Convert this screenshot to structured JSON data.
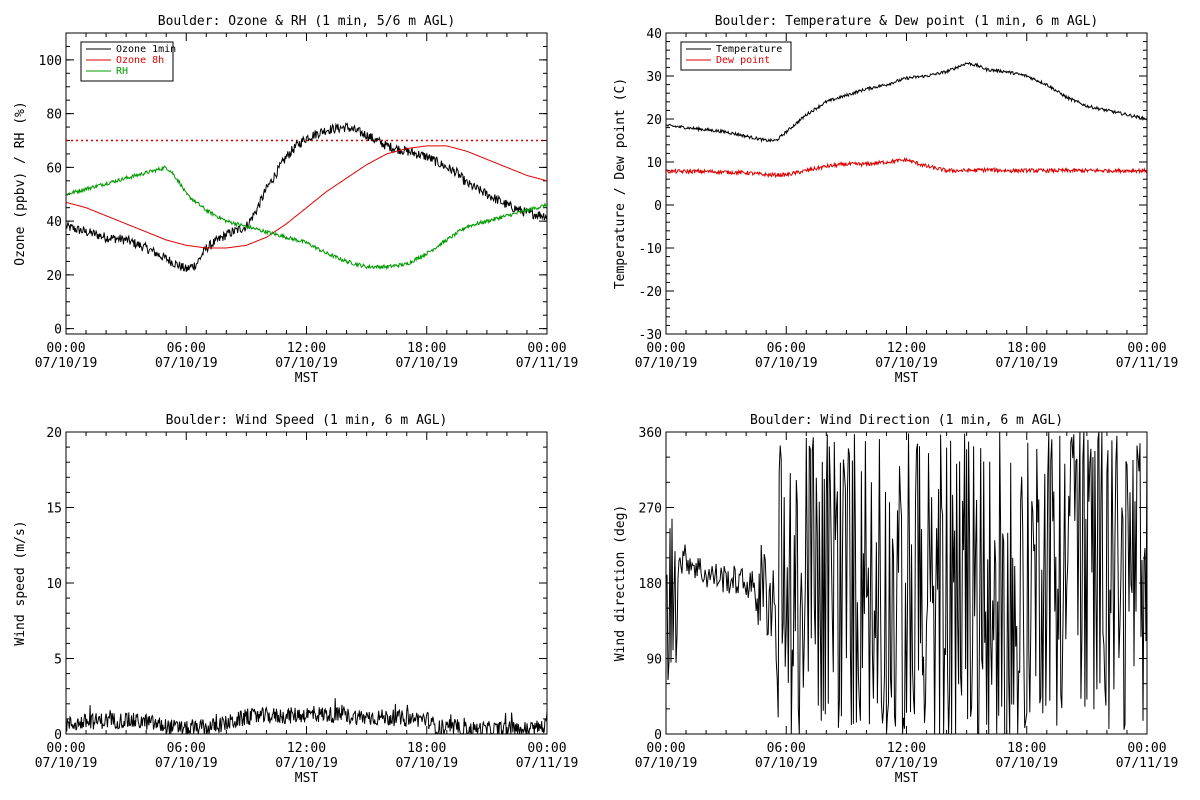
{
  "colors": {
    "ozone_1min": "#000000",
    "ozone_8h": "#dd0000",
    "rh": "#009900",
    "temperature": "#000000",
    "dew_point": "#dd0000",
    "wind_speed": "#000000",
    "wind_direction": "#000000",
    "threshold": "#dd0000"
  },
  "chart_data": [
    {
      "type": "line",
      "title": "Boulder: Ozone & RH (1 min, 5/6 m AGL)",
      "xlabel": "MST",
      "ylabel": "Ozone (ppbv) / RH (%)",
      "xlim": [
        "00:00 07/10/19",
        "00:00 07/11/19"
      ],
      "ylim": [
        -2,
        110
      ],
      "yticks": [
        "0",
        "20",
        "40",
        "60",
        "80",
        "100"
      ],
      "xticks": [
        {
          "time": "00:00",
          "date": "07/10/19"
        },
        {
          "time": "06:00",
          "date": "07/10/19"
        },
        {
          "time": "12:00",
          "date": "07/10/19"
        },
        {
          "time": "18:00",
          "date": "07/10/19"
        },
        {
          "time": "00:00",
          "date": "07/11/19"
        }
      ],
      "legend_position": "top-left",
      "reference_line": {
        "y": 70,
        "style": "dotted"
      },
      "series": [
        {
          "name": "Ozone 1min",
          "x_hours": [
            0,
            1,
            2,
            3,
            4,
            5,
            5.5,
            6,
            6.5,
            7,
            8,
            9,
            9.5,
            10,
            10.5,
            11,
            11.5,
            12,
            13,
            14,
            15,
            16,
            17,
            18,
            18.5,
            19,
            19.5,
            20,
            21,
            22,
            23,
            24
          ],
          "values": [
            38,
            36,
            34,
            33,
            30,
            26,
            24,
            22,
            24,
            30,
            35,
            38,
            44,
            52,
            58,
            64,
            68,
            71,
            74,
            75,
            72,
            68,
            66,
            64,
            62,
            60,
            58,
            54,
            50,
            46,
            43,
            42
          ],
          "noise": 1.8
        },
        {
          "name": "Ozone 8h",
          "x_hours": [
            0,
            1,
            2,
            3,
            4,
            5,
            6,
            7,
            8,
            9,
            10,
            11,
            12,
            13,
            14,
            15,
            16,
            17,
            18,
            19,
            20,
            21,
            22,
            23,
            24
          ],
          "values": [
            47,
            45,
            42,
            39,
            36,
            33,
            31,
            30,
            30,
            31,
            34,
            39,
            45,
            51,
            56,
            61,
            65,
            67,
            68,
            68,
            66,
            63,
            60,
            57,
            55
          ],
          "noise": 0
        },
        {
          "name": "RH",
          "x_hours": [
            0,
            1,
            2,
            3,
            4,
            4.5,
            5,
            5.3,
            5.7,
            6,
            7,
            8,
            9,
            10,
            11,
            12,
            13,
            14,
            15,
            16,
            17,
            18,
            19,
            20,
            21,
            22,
            23,
            24
          ],
          "values": [
            50,
            52,
            54,
            56,
            58,
            59,
            60,
            58,
            54,
            50,
            44,
            40,
            38,
            36,
            34,
            32,
            28,
            25,
            23,
            23,
            24,
            28,
            33,
            38,
            40,
            42,
            44,
            46
          ],
          "noise": 0.7
        }
      ]
    },
    {
      "type": "line",
      "title": "Boulder: Temperature & Dew point (1 min, 6 m AGL)",
      "xlabel": "MST",
      "ylabel": "Temperature / Dew point (C)",
      "xlim": [
        "00:00 07/10/19",
        "00:00 07/11/19"
      ],
      "ylim": [
        -30,
        40
      ],
      "yticks": [
        "-30",
        "-20",
        "-10",
        "0",
        "10",
        "20",
        "30",
        "40"
      ],
      "xticks": [
        {
          "time": "00:00",
          "date": "07/10/19"
        },
        {
          "time": "06:00",
          "date": "07/10/19"
        },
        {
          "time": "12:00",
          "date": "07/10/19"
        },
        {
          "time": "18:00",
          "date": "07/10/19"
        },
        {
          "time": "00:00",
          "date": "07/11/19"
        }
      ],
      "legend_position": "top-left",
      "series": [
        {
          "name": "Temperature",
          "x_hours": [
            0,
            1,
            2,
            3,
            4,
            5,
            5.5,
            6,
            7,
            8,
            9,
            10,
            11,
            12,
            13,
            14,
            15,
            15.5,
            16,
            17,
            18,
            19,
            20,
            21,
            22,
            23,
            24
          ],
          "values": [
            18.5,
            18,
            17.5,
            17,
            16,
            15,
            15,
            17,
            21,
            24,
            25.5,
            27,
            28,
            29.5,
            30,
            31,
            33,
            32.5,
            31.5,
            31,
            30,
            28,
            25,
            23,
            22,
            21,
            20
          ],
          "noise": 0.35
        },
        {
          "name": "Dew point",
          "x_hours": [
            0,
            2,
            4,
            5,
            6,
            7,
            8,
            9,
            10,
            11,
            12,
            13,
            14,
            15,
            16,
            17,
            18,
            20,
            22,
            24
          ],
          "values": [
            7.8,
            7.8,
            7.5,
            7,
            7,
            8,
            9,
            9.5,
            9.5,
            10,
            10.5,
            9,
            8,
            8,
            8.2,
            8,
            8,
            8,
            8,
            8
          ],
          "noise": 0.45
        }
      ]
    },
    {
      "type": "line",
      "title": "Boulder: Wind Speed (1 min, 6 m AGL)",
      "xlabel": "MST",
      "ylabel": "Wind speed (m/s)",
      "xlim": [
        "00:00 07/10/19",
        "00:00 07/11/19"
      ],
      "ylim": [
        0,
        20
      ],
      "yticks": [
        "0",
        "5",
        "10",
        "15",
        "20"
      ],
      "xticks": [
        {
          "time": "00:00",
          "date": "07/10/19"
        },
        {
          "time": "06:00",
          "date": "07/10/19"
        },
        {
          "time": "12:00",
          "date": "07/10/19"
        },
        {
          "time": "18:00",
          "date": "07/10/19"
        },
        {
          "time": "00:00",
          "date": "07/11/19"
        }
      ],
      "series": [
        {
          "name": "Wind speed",
          "x_hours": [
            0,
            1,
            2,
            3,
            4,
            5,
            6,
            7,
            8,
            9,
            10,
            11,
            12,
            13,
            14,
            15,
            16,
            17,
            18,
            18.5,
            19,
            20,
            21,
            22,
            23,
            24
          ],
          "values": [
            0.6,
            0.8,
            0.9,
            0.9,
            0.8,
            0.5,
            0.3,
            0.4,
            0.7,
            1.1,
            1.2,
            1.2,
            1.3,
            1.3,
            1.2,
            1.1,
            1.1,
            1.0,
            1.0,
            0.4,
            0.3,
            0.3,
            0.3,
            0.3,
            0.3,
            0.5
          ],
          "noise": 0.55
        }
      ]
    },
    {
      "type": "line",
      "title": "Boulder: Wind Direction (1 min, 6 m AGL)",
      "xlabel": "MST",
      "ylabel": "Wind direction (deg)",
      "xlim": [
        "00:00 07/10/19",
        "00:00 07/11/19"
      ],
      "ylim": [
        0,
        360
      ],
      "yticks": [
        "0",
        "90",
        "180",
        "270",
        "360"
      ],
      "xticks": [
        {
          "time": "00:00",
          "date": "07/10/19"
        },
        {
          "time": "06:00",
          "date": "07/10/19"
        },
        {
          "time": "12:00",
          "date": "07/10/19"
        },
        {
          "time": "18:00",
          "date": "07/10/19"
        },
        {
          "time": "00:00",
          "date": "07/11/19"
        }
      ],
      "series": [
        {
          "name": "Wind direction",
          "x_hours": [
            0,
            0.5,
            1,
            2,
            3,
            4,
            5,
            6,
            7,
            8,
            9,
            10,
            11,
            12,
            13,
            14,
            15,
            16,
            17,
            18,
            19,
            20,
            21,
            22,
            23,
            24
          ],
          "values": [
            120,
            200,
            210,
            190,
            185,
            180,
            170,
            150,
            140,
            160,
            170,
            165,
            160,
            150,
            140,
            130,
            120,
            110,
            100,
            180,
            200,
            220,
            230,
            210,
            200,
            190
          ],
          "noise": 0
        }
      ]
    }
  ]
}
